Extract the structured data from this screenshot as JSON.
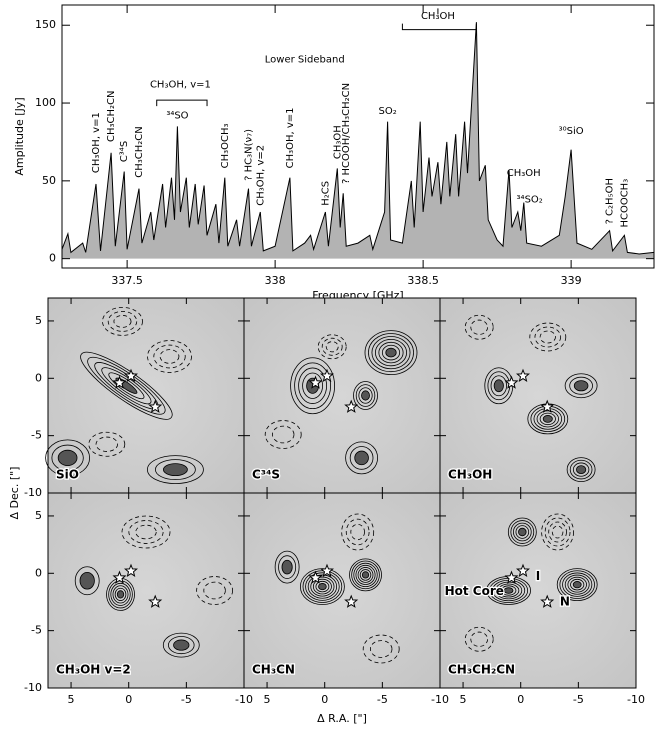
{
  "chart_data": [
    {
      "type": "line",
      "xlabel": "Frequency [GHz]",
      "ylabel": "Amplitude [Jy]",
      "color": "#000000",
      "fill": "#b3b3b3",
      "xlim": [
        337.28,
        339.28
      ],
      "ylim": [
        -6,
        163
      ],
      "xticks": [
        337.5,
        338,
        338.5,
        339
      ],
      "yticks": [
        0,
        50,
        100,
        150
      ],
      "x": [
        337.28,
        337.3,
        337.31,
        337.35,
        337.36,
        337.395,
        337.41,
        337.446,
        337.46,
        337.49,
        337.5,
        337.54,
        337.55,
        337.58,
        337.59,
        337.62,
        337.63,
        337.65,
        337.66,
        337.67,
        337.68,
        337.7,
        337.71,
        337.73,
        337.74,
        337.76,
        337.77,
        337.8,
        337.81,
        337.83,
        337.84,
        337.87,
        337.88,
        337.91,
        337.92,
        337.95,
        337.96,
        338.0,
        338.05,
        338.06,
        338.1,
        338.12,
        338.13,
        338.17,
        338.18,
        338.21,
        338.22,
        338.23,
        338.24,
        338.28,
        338.32,
        338.33,
        338.37,
        338.38,
        338.39,
        338.43,
        338.46,
        338.47,
        338.49,
        338.5,
        338.52,
        338.53,
        338.55,
        338.56,
        338.58,
        338.59,
        338.61,
        338.62,
        338.64,
        338.65,
        338.68,
        338.69,
        338.71,
        338.72,
        338.75,
        338.77,
        338.79,
        338.8,
        338.82,
        338.83,
        338.84,
        338.85,
        338.9,
        338.96,
        338.98,
        339.0,
        339.02,
        339.07,
        339.13,
        339.14,
        339.18,
        339.19,
        339.23,
        339.28
      ],
      "values": [
        6,
        16,
        4,
        10,
        4,
        48,
        5,
        68,
        8,
        56,
        6,
        45,
        10,
        30,
        12,
        48,
        20,
        52,
        25,
        85,
        30,
        52,
        20,
        48,
        22,
        47,
        15,
        35,
        10,
        52,
        8,
        25,
        8,
        45,
        8,
        30,
        5,
        8,
        52,
        5,
        10,
        15,
        6,
        30,
        8,
        58,
        20,
        42,
        8,
        10,
        15,
        6,
        30,
        88,
        12,
        10,
        50,
        20,
        88,
        30,
        65,
        40,
        62,
        35,
        75,
        40,
        80,
        40,
        88,
        55,
        152,
        50,
        60,
        25,
        12,
        8,
        57,
        20,
        30,
        18,
        36,
        10,
        8,
        15,
        40,
        70,
        10,
        6,
        18,
        5,
        15,
        4,
        3,
        4
      ],
      "annotations": [
        {
          "text": "CH₃OH, v=1",
          "x": 337.395,
          "y": 55,
          "rotate": true
        },
        {
          "text": "CH₃CH₂CN",
          "x": 337.446,
          "y": 75,
          "rotate": true
        },
        {
          "text": "C³⁴S",
          "x": 337.49,
          "y": 62,
          "rotate": true
        },
        {
          "text": "CH₃CH₂CN",
          "x": 337.54,
          "y": 52,
          "rotate": true
        },
        {
          "text": "³⁴SO",
          "x": 337.67,
          "y": 92,
          "rotate": false
        },
        {
          "text": "CH₃OH, v=1",
          "x": 337.68,
          "y": 112,
          "rotate": false
        },
        {
          "text": "CH₃OCH₃",
          "x": 337.83,
          "y": 58,
          "rotate": true
        },
        {
          "text": "? HC₃N(ν₇)",
          "x": 337.91,
          "y": 50,
          "rotate": true
        },
        {
          "text": "CH₃OH, v=2",
          "x": 337.95,
          "y": 34,
          "rotate": true
        },
        {
          "text": "CH₃OH, v=1",
          "x": 338.05,
          "y": 58,
          "rotate": true
        },
        {
          "text": "H₂CS",
          "x": 338.17,
          "y": 34,
          "rotate": true
        },
        {
          "text": "CH₃OH",
          "x": 338.21,
          "y": 64,
          "rotate": true
        },
        {
          "text": "? HCOOH/CH₃CH₂CN",
          "x": 338.24,
          "y": 48,
          "rotate": true
        },
        {
          "text": "SO₂",
          "x": 338.38,
          "y": 95,
          "rotate": false
        },
        {
          "text": "CH₃OH",
          "x": 338.55,
          "y": 156,
          "rotate": false
        },
        {
          "text": "CH₃OH",
          "x": 338.84,
          "y": 55,
          "rotate": false
        },
        {
          "text": "³⁴SO₂",
          "x": 338.86,
          "y": 38,
          "rotate": false
        },
        {
          "text": "³⁰SiO",
          "x": 339.0,
          "y": 82,
          "rotate": false
        },
        {
          "text": "? C₂H₅OH",
          "x": 339.13,
          "y": 22,
          "rotate": true
        },
        {
          "text": "HCOOCH₃",
          "x": 339.18,
          "y": 20,
          "rotate": true
        },
        {
          "text": "Lower Sideband",
          "x": 338.1,
          "y": 128,
          "rotate": false
        }
      ]
    },
    {
      "type": "map",
      "xlabel": "Δ R.A. [\"]",
      "ylabel": "Δ Dec. [\"]",
      "xlim": [
        7,
        -10
      ],
      "ylim": [
        -10,
        7
      ],
      "xticks": [
        5,
        0,
        -5,
        -10
      ],
      "yticks": [
        -10,
        -5,
        0,
        5
      ],
      "sources": [
        [
          0.8,
          -0.4
        ],
        [
          -0.2,
          0.2
        ],
        [
          -2.3,
          -2.5
        ]
      ],
      "panels": [
        {
          "label": "SiO"
        },
        {
          "label": "C³⁴S"
        },
        {
          "label": "CH₃OH"
        },
        {
          "label": "CH₃OH v=2"
        },
        {
          "label": "CH₃CN"
        },
        {
          "label": "CH₃CH₂CN"
        }
      ],
      "annotations": [
        {
          "text": "Hot Core",
          "x": 6.6,
          "y": -1.6
        },
        {
          "text": "I",
          "x": -1.3,
          "y": -0.3
        },
        {
          "text": "N",
          "x": -3.4,
          "y": -2.5
        }
      ]
    }
  ]
}
